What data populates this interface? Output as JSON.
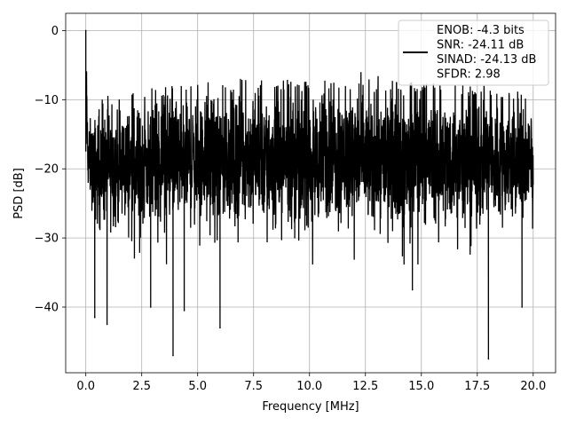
{
  "chart_data": {
    "type": "line",
    "title": "",
    "xlabel": "Frequency [MHz]",
    "ylabel": "PSD [dB]",
    "xlim": [
      -0.9,
      21.0
    ],
    "ylim": [
      -49.5,
      2.5
    ],
    "xticks": [
      0.0,
      2.5,
      5.0,
      7.5,
      10.0,
      12.5,
      15.0,
      17.5,
      20.0
    ],
    "xtick_labels": [
      "0.0",
      "2.5",
      "5.0",
      "7.5",
      "10.0",
      "12.5",
      "15.0",
      "17.5",
      "20.0"
    ],
    "yticks": [
      0,
      -10,
      -20,
      -30,
      -40
    ],
    "ytick_labels": [
      "0",
      "−10",
      "−20",
      "−30",
      "−40"
    ],
    "grid": true,
    "legend_position": "top-right",
    "series": [
      {
        "name": "ENOB: -4.3 bits\nSNR: -24.11 dB\nSINAD: -24.13 dB\nSFDR: 2.98",
        "color": "#000000",
        "x_range": [
          0.0,
          20.0
        ],
        "spectrum_style": "dense noise floor",
        "envelope": {
          "x": [
            0.0,
            0.1,
            0.5,
            2.5,
            5.0,
            7.5,
            10.0,
            12.5,
            15.0,
            17.5,
            20.0
          ],
          "upper": [
            0.0,
            -12.0,
            -10.5,
            -8.5,
            -7.5,
            -7.0,
            -7.0,
            -7.0,
            -7.5,
            -8.0,
            -9.0
          ],
          "lower": [
            -18.0,
            -25.0,
            -30.0,
            -30.0,
            -30.0,
            -30.0,
            -30.0,
            -30.0,
            -30.0,
            -30.0,
            -30.0
          ]
        },
        "notable_points": [
          {
            "x": 0.0,
            "y": 0.0
          },
          {
            "x": 0.4,
            "y": -41.5
          },
          {
            "x": 0.95,
            "y": -42.5
          },
          {
            "x": 2.9,
            "y": -40.0
          },
          {
            "x": 3.9,
            "y": -47.0
          },
          {
            "x": 4.4,
            "y": -40.5
          },
          {
            "x": 6.0,
            "y": -43.0
          },
          {
            "x": 14.6,
            "y": -37.5
          },
          {
            "x": 18.0,
            "y": -47.5
          },
          {
            "x": 19.5,
            "y": -40.0
          }
        ]
      }
    ]
  },
  "legend": {
    "lines": [
      "ENOB: -4.3 bits",
      "SNR: -24.11 dB",
      "SINAD: -24.13 dB",
      "SFDR: 2.98"
    ],
    "color": "#000000"
  }
}
